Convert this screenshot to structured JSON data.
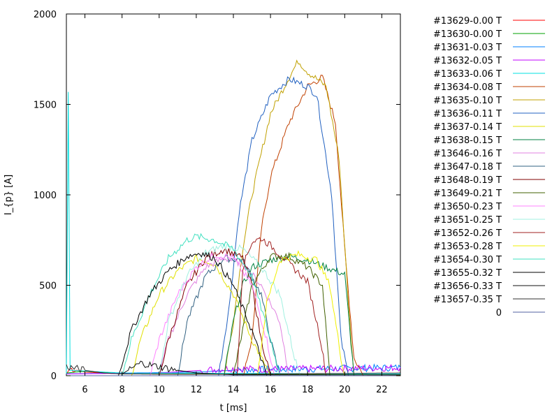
{
  "chart_data": {
    "type": "line",
    "title": "",
    "xlabel": "t [ms]",
    "ylabel": "I_{p} [A]",
    "xlim": [
      5,
      23
    ],
    "ylim": [
      0,
      2000
    ],
    "x_ticks": [
      6,
      8,
      10,
      12,
      14,
      16,
      18,
      20,
      22
    ],
    "y_ticks": [
      0,
      500,
      1000,
      1500,
      2000
    ],
    "grid": false,
    "legend_position": "outside-right",
    "series": [
      {
        "name": "#13629-0.00 T",
        "color": "#ff0000",
        "points": [
          [
            5,
            10
          ],
          [
            5.2,
            40
          ],
          [
            6,
            20
          ],
          [
            8,
            10
          ],
          [
            23,
            5
          ]
        ]
      },
      {
        "name": "#13630-0.00 T",
        "color": "#00a000",
        "points": [
          [
            5,
            15
          ],
          [
            6,
            25
          ],
          [
            8,
            10
          ],
          [
            23,
            5
          ]
        ]
      },
      {
        "name": "#13631-0.03 T",
        "color": "#0080ff",
        "points": [
          [
            5,
            10
          ],
          [
            8,
            15
          ],
          [
            12,
            20
          ],
          [
            14,
            30
          ],
          [
            16,
            35
          ],
          [
            20,
            40
          ],
          [
            23,
            45
          ]
        ]
      },
      {
        "name": "#13632-0.05 T",
        "color": "#c000ff",
        "points": [
          [
            5,
            10
          ],
          [
            10,
            15
          ],
          [
            13.8,
            40
          ],
          [
            16,
            35
          ],
          [
            20,
            40
          ],
          [
            23,
            45
          ]
        ]
      },
      {
        "name": "#13633-0.06 T",
        "color": "#00e0e0",
        "points": [
          [
            5,
            10
          ],
          [
            5.1,
            1560
          ],
          [
            5.2,
            30
          ],
          [
            8,
            15
          ],
          [
            23,
            10
          ]
        ]
      },
      {
        "name": "#13634-0.08 T",
        "color": "#c04000",
        "points": [
          [
            14.5,
            0
          ],
          [
            15,
            200
          ],
          [
            15.5,
            800
          ],
          [
            16,
            1100
          ],
          [
            17,
            1400
          ],
          [
            18,
            1600
          ],
          [
            18.8,
            1650
          ],
          [
            19.5,
            1400
          ],
          [
            20,
            700
          ],
          [
            20.5,
            100
          ],
          [
            21,
            0
          ]
        ]
      },
      {
        "name": "#13635-0.10 T",
        "color": "#c0a000",
        "points": [
          [
            13.5,
            0
          ],
          [
            14,
            300
          ],
          [
            14.5,
            700
          ],
          [
            15,
            1000
          ],
          [
            16,
            1450
          ],
          [
            17,
            1650
          ],
          [
            17.5,
            1740
          ],
          [
            18,
            1680
          ],
          [
            19,
            1600
          ],
          [
            19.7,
            1200
          ],
          [
            20.2,
            400
          ],
          [
            20.5,
            0
          ]
        ]
      },
      {
        "name": "#13636-0.11 T",
        "color": "#2060c0",
        "points": [
          [
            13.2,
            0
          ],
          [
            13.8,
            400
          ],
          [
            14.3,
            900
          ],
          [
            15,
            1300
          ],
          [
            16,
            1550
          ],
          [
            17,
            1640
          ],
          [
            18,
            1600
          ],
          [
            18.5,
            1550
          ],
          [
            19.3,
            1000
          ],
          [
            19.8,
            200
          ],
          [
            20.2,
            0
          ]
        ]
      },
      {
        "name": "#13637-0.14 T",
        "color": "#e0e000",
        "points": [
          [
            8.5,
            0
          ],
          [
            9,
            200
          ],
          [
            10,
            450
          ],
          [
            11,
            580
          ],
          [
            12,
            650
          ],
          [
            13,
            620
          ],
          [
            14,
            450
          ],
          [
            15,
            200
          ],
          [
            16,
            0
          ]
        ]
      },
      {
        "name": "#13638-0.15 T",
        "color": "#008040",
        "points": [
          [
            13.5,
            0
          ],
          [
            14,
            300
          ],
          [
            14.5,
            500
          ],
          [
            15,
            600
          ],
          [
            16,
            640
          ],
          [
            17,
            660
          ],
          [
            18,
            640
          ],
          [
            19,
            600
          ],
          [
            20,
            560
          ],
          [
            20.5,
            0
          ]
        ]
      },
      {
        "name": "#13646-0.16 T",
        "color": "#e080e0",
        "points": [
          [
            10,
            0
          ],
          [
            10.5,
            200
          ],
          [
            11.5,
            450
          ],
          [
            12.5,
            600
          ],
          [
            13.5,
            650
          ],
          [
            14.5,
            620
          ],
          [
            15.5,
            500
          ],
          [
            16.5,
            300
          ],
          [
            17,
            0
          ]
        ]
      },
      {
        "name": "#13647-0.18 T",
        "color": "#306080",
        "points": [
          [
            11,
            0
          ],
          [
            11.5,
            300
          ],
          [
            12.5,
            550
          ],
          [
            13.5,
            650
          ],
          [
            14.5,
            640
          ],
          [
            15.5,
            450
          ],
          [
            16,
            200
          ],
          [
            16.5,
            0
          ]
        ]
      },
      {
        "name": "#13648-0.19 T",
        "color": "#800000",
        "points": [
          [
            10,
            0
          ],
          [
            10.5,
            200
          ],
          [
            11.5,
            500
          ],
          [
            12.5,
            650
          ],
          [
            13.5,
            700
          ],
          [
            14.5,
            650
          ],
          [
            15,
            500
          ],
          [
            15.5,
            200
          ],
          [
            16,
            0
          ]
        ]
      },
      {
        "name": "#13649-0.21 T",
        "color": "#406000",
        "points": [
          [
            14,
            0
          ],
          [
            15,
            500
          ],
          [
            16,
            660
          ],
          [
            17,
            660
          ],
          [
            18,
            600
          ],
          [
            18.8,
            500
          ],
          [
            19.2,
            0
          ]
        ]
      },
      {
        "name": "#13650-0.23 T",
        "color": "#ff80ff",
        "points": [
          [
            9.5,
            0
          ],
          [
            10,
            200
          ],
          [
            11,
            450
          ],
          [
            12,
            600
          ],
          [
            13,
            670
          ],
          [
            14,
            650
          ],
          [
            15,
            500
          ],
          [
            15.8,
            200
          ],
          [
            16.2,
            0
          ]
        ]
      },
      {
        "name": "#13651-0.25 T",
        "color": "#a0f0e0",
        "points": [
          [
            10,
            0
          ],
          [
            10.5,
            300
          ],
          [
            11.5,
            550
          ],
          [
            12.5,
            680
          ],
          [
            13.5,
            720
          ],
          [
            14.5,
            700
          ],
          [
            15.5,
            600
          ],
          [
            16.5,
            450
          ],
          [
            17.3,
            100
          ],
          [
            17.6,
            0
          ]
        ]
      },
      {
        "name": "#13652-0.26 T",
        "color": "#a02020",
        "points": [
          [
            14.2,
            0
          ],
          [
            14.5,
            600
          ],
          [
            15,
            740
          ],
          [
            15.5,
            760
          ],
          [
            16,
            720
          ],
          [
            17,
            620
          ],
          [
            18,
            520
          ],
          [
            18.7,
            200
          ],
          [
            19,
            0
          ]
        ]
      },
      {
        "name": "#13653-0.28 T",
        "color": "#f0f000",
        "points": [
          [
            15.3,
            0
          ],
          [
            15.8,
            400
          ],
          [
            16.5,
            640
          ],
          [
            17.5,
            670
          ],
          [
            18.5,
            640
          ],
          [
            19.2,
            500
          ],
          [
            19.8,
            100
          ],
          [
            20,
            0
          ]
        ]
      },
      {
        "name": "#13654-0.30 T",
        "color": "#40e0c0",
        "points": [
          [
            8,
            0
          ],
          [
            8.5,
            200
          ],
          [
            9.5,
            450
          ],
          [
            10.5,
            650
          ],
          [
            11.5,
            750
          ],
          [
            12,
            770
          ],
          [
            13,
            750
          ],
          [
            14,
            700
          ],
          [
            15,
            550
          ],
          [
            16,
            200
          ],
          [
            16.5,
            0
          ]
        ]
      },
      {
        "name": "#13655-0.32 T",
        "color": "#000000",
        "points": [
          [
            7.8,
            0
          ],
          [
            8.5,
            250
          ],
          [
            9.5,
            450
          ],
          [
            10.5,
            580
          ],
          [
            11.5,
            660
          ],
          [
            12.2,
            680
          ],
          [
            13,
            650
          ],
          [
            14,
            500
          ],
          [
            15,
            250
          ],
          [
            15.8,
            0
          ]
        ]
      },
      {
        "name": "#13656-0.33 T",
        "color": "#101010",
        "points": [
          [
            8,
            10
          ],
          [
            9,
            70
          ],
          [
            10,
            50
          ],
          [
            11,
            30
          ],
          [
            12,
            15
          ],
          [
            13,
            10
          ],
          [
            14,
            5
          ],
          [
            23,
            5
          ]
        ]
      },
      {
        "name": "#13657-0.35 T",
        "color": "#303030",
        "points": [
          [
            5,
            50
          ],
          [
            6,
            30
          ],
          [
            7,
            15
          ],
          [
            8,
            10
          ],
          [
            12,
            8
          ],
          [
            16,
            10
          ],
          [
            23,
            15
          ]
        ]
      },
      {
        "name": "0",
        "color": "#5060a0",
        "points": [
          [
            5,
            0
          ],
          [
            23,
            0
          ]
        ]
      }
    ]
  }
}
